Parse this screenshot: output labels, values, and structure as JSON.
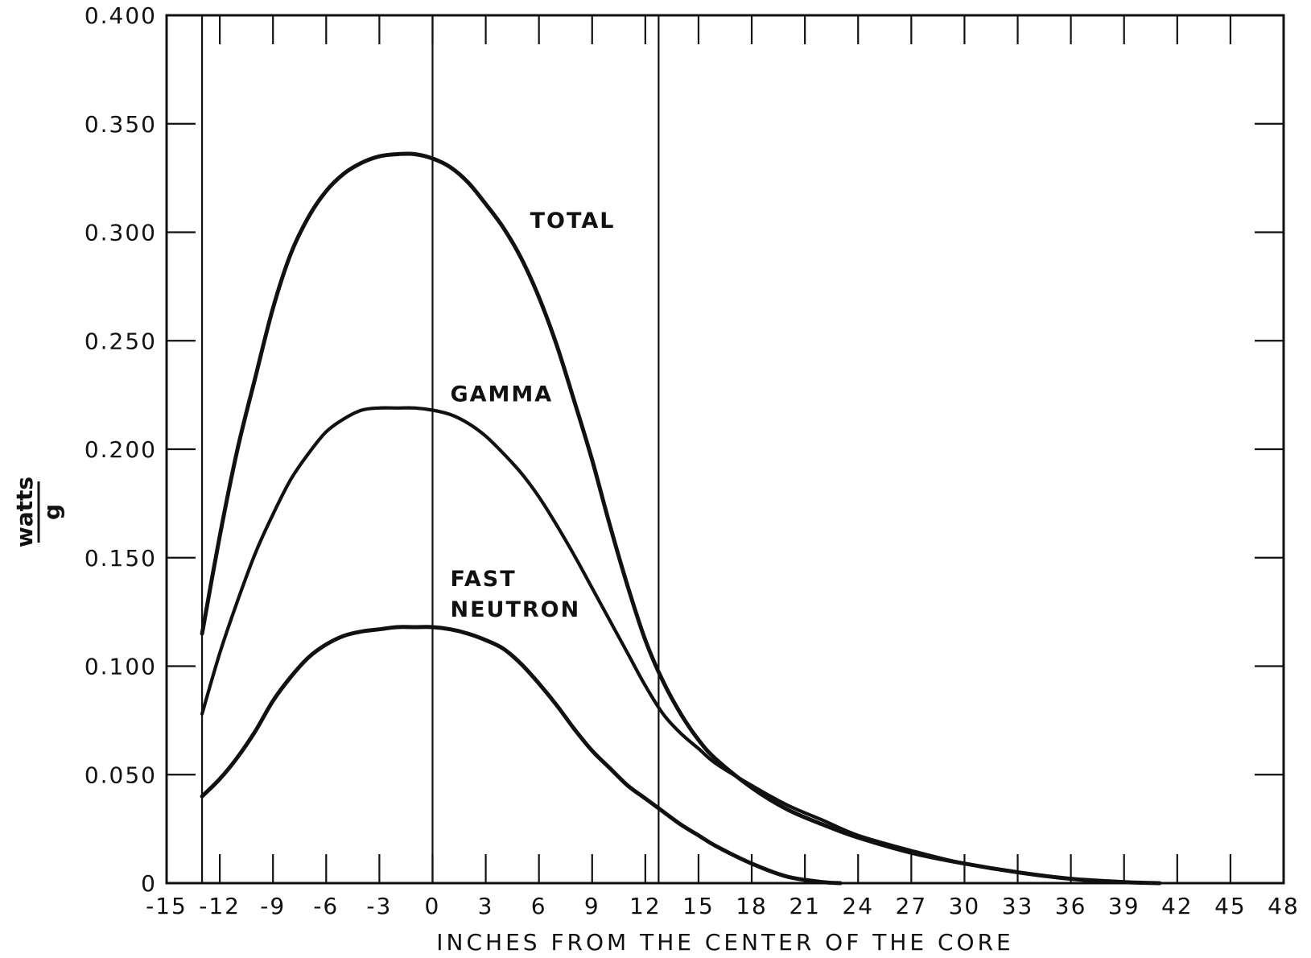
{
  "chart_data": {
    "type": "line",
    "title": "",
    "xlabel": "INCHES FROM THE CENTER OF THE CORE",
    "ylabel": {
      "numerator": "watts",
      "denominator": "g"
    },
    "xlim": [
      -15,
      48
    ],
    "ylim": [
      0,
      0.4
    ],
    "xticks": [
      -15,
      -12,
      -9,
      -6,
      -3,
      0,
      3,
      6,
      9,
      12,
      15,
      18,
      21,
      24,
      27,
      30,
      33,
      36,
      39,
      42,
      45,
      48
    ],
    "xtick_labels": [
      "-15",
      "-12",
      "-9",
      "-6",
      "-3",
      "0",
      "3",
      "6",
      "9",
      "12",
      "15",
      "18",
      "21",
      "24",
      "27",
      "30",
      "33",
      "36",
      "39",
      "42",
      "45",
      "48"
    ],
    "yticks": [
      0,
      0.05,
      0.1,
      0.15,
      0.2,
      0.25,
      0.3,
      0.35,
      0.4
    ],
    "ytick_labels": [
      "0",
      "0.050",
      "0.100",
      "0.150",
      "0.200",
      "0.250",
      "0.300",
      "0.350",
      "0.400"
    ],
    "reference_lines_x": [
      -13,
      0,
      12.75
    ],
    "grid": false,
    "series": [
      {
        "name": "TOTAL",
        "label_lines": [
          "TOTAL"
        ],
        "label_anchor": {
          "x": 5.5,
          "y": 0.302
        },
        "x": [
          -13,
          -12,
          -11,
          -10,
          -9,
          -8,
          -7,
          -6,
          -5,
          -4,
          -3,
          -2,
          -1,
          0,
          1,
          2,
          3,
          4,
          5,
          6,
          7,
          8,
          9,
          10,
          11,
          12,
          13,
          14,
          15,
          16,
          18,
          20,
          22,
          24,
          27,
          30,
          33,
          36,
          39,
          41
        ],
        "values": [
          0.115,
          0.16,
          0.2,
          0.233,
          0.265,
          0.29,
          0.307,
          0.319,
          0.327,
          0.332,
          0.335,
          0.336,
          0.336,
          0.334,
          0.33,
          0.323,
          0.313,
          0.302,
          0.288,
          0.27,
          0.248,
          0.222,
          0.195,
          0.165,
          0.137,
          0.112,
          0.093,
          0.078,
          0.066,
          0.057,
          0.044,
          0.034,
          0.027,
          0.021,
          0.014,
          0.009,
          0.005,
          0.002,
          0.0005,
          0
        ]
      },
      {
        "name": "GAMMA",
        "label_lines": [
          "GAMMA"
        ],
        "label_anchor": {
          "x": 1,
          "y": 0.222
        },
        "x": [
          -13,
          -12,
          -11,
          -10,
          -9,
          -8,
          -7,
          -6,
          -5,
          -4,
          -3,
          -2,
          -1,
          0,
          1,
          2,
          3,
          4,
          5,
          6,
          7,
          8,
          9,
          10,
          11,
          12,
          13,
          14,
          15,
          16,
          18,
          20,
          22,
          24,
          27,
          30,
          33,
          36,
          39,
          41
        ],
        "values": [
          0.078,
          0.106,
          0.13,
          0.152,
          0.17,
          0.186,
          0.198,
          0.208,
          0.214,
          0.218,
          0.219,
          0.219,
          0.219,
          0.218,
          0.216,
          0.212,
          0.206,
          0.198,
          0.189,
          0.178,
          0.165,
          0.151,
          0.136,
          0.121,
          0.106,
          0.091,
          0.078,
          0.069,
          0.062,
          0.055,
          0.045,
          0.036,
          0.029,
          0.022,
          0.015,
          0.009,
          0.005,
          0.002,
          0.0005,
          0
        ]
      },
      {
        "name": "FAST NEUTRON",
        "label_lines": [
          "FAST",
          "NEUTRON"
        ],
        "label_anchor": {
          "x": 1,
          "y": 0.137
        },
        "x": [
          -13,
          -12,
          -11,
          -10,
          -9,
          -8,
          -7,
          -6,
          -5,
          -4,
          -3,
          -2,
          -1,
          0,
          1,
          2,
          3,
          4,
          5,
          6,
          7,
          8,
          9,
          10,
          11,
          12,
          13,
          14,
          15,
          16,
          18,
          20,
          22,
          23
        ],
        "values": [
          0.04,
          0.048,
          0.058,
          0.07,
          0.084,
          0.095,
          0.104,
          0.11,
          0.114,
          0.116,
          0.117,
          0.118,
          0.118,
          0.118,
          0.117,
          0.115,
          0.112,
          0.108,
          0.101,
          0.092,
          0.082,
          0.071,
          0.061,
          0.053,
          0.045,
          0.039,
          0.033,
          0.027,
          0.022,
          0.017,
          0.009,
          0.003,
          0.0005,
          0
        ]
      }
    ]
  }
}
